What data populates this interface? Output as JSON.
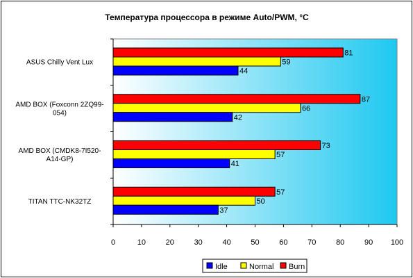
{
  "chart_data": {
    "type": "bar",
    "orientation": "horizontal",
    "title": "Температура процессора в режиме Auto/PWM, °C",
    "xlabel": "",
    "ylabel": "",
    "xlim": [
      0,
      100
    ],
    "x_ticks": [
      "0",
      "10",
      "20",
      "30",
      "40",
      "50",
      "60",
      "70",
      "80",
      "90",
      "100"
    ],
    "categories": [
      [
        "ASUS Chilly Vent Lux"
      ],
      [
        "AMD BOX (Foxconn 2ZQ99-",
        "054)"
      ],
      [
        "AMD BOX (CMDK8-7I520-",
        "A14-GP)"
      ],
      [
        "TITAN TTC-NK32TZ"
      ]
    ],
    "series": [
      {
        "name": "Idle",
        "color": "#0000ff",
        "values": [
          44,
          42,
          41,
          37
        ]
      },
      {
        "name": "Normal",
        "color": "#ffff00",
        "values": [
          59,
          66,
          57,
          50
        ]
      },
      {
        "name": "Burn",
        "color": "#ff0000",
        "values": [
          81,
          87,
          73,
          57
        ]
      }
    ],
    "plot_background": "gradient white to #1ec8f0",
    "grid": false,
    "legend_position": "bottom"
  }
}
